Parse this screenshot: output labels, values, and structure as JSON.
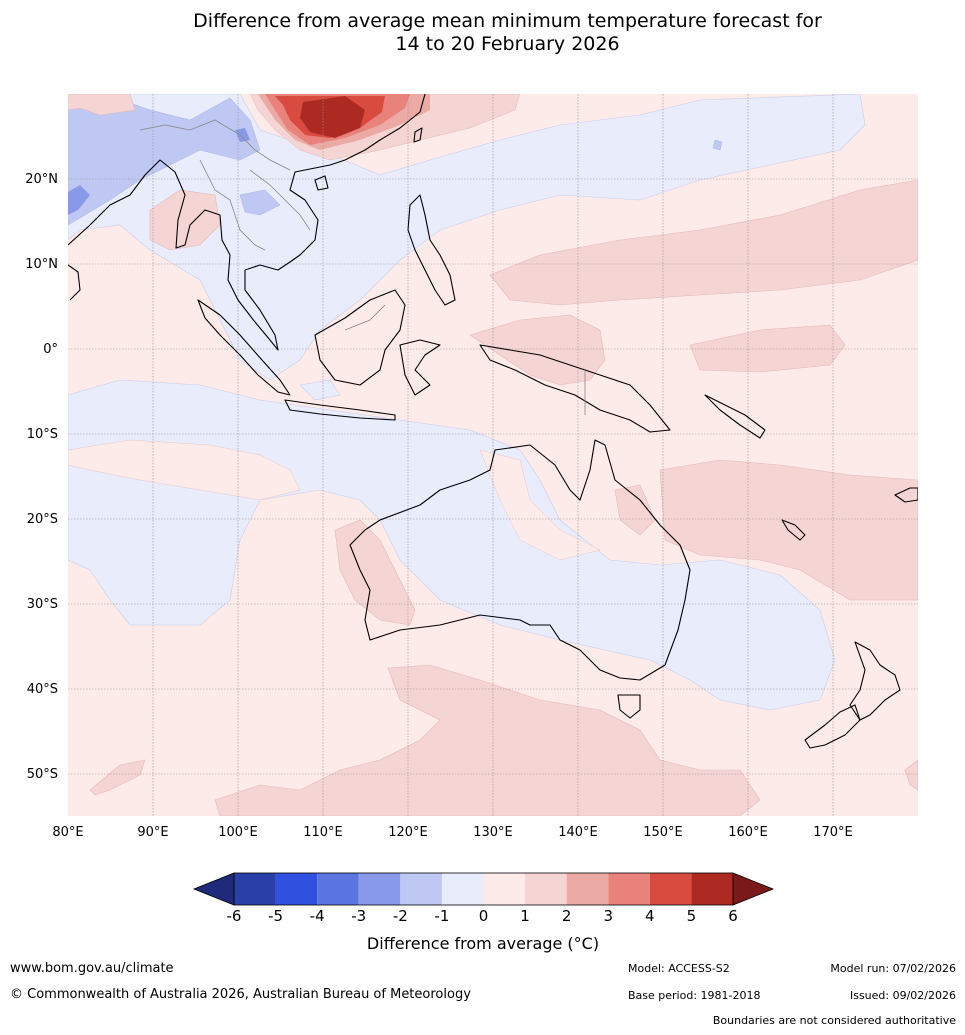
{
  "title": {
    "line1": "Difference from average mean minimum temperature forecast for",
    "line2": "14 to 20 February 2026"
  },
  "map": {
    "lon_labels": [
      "80°E",
      "90°E",
      "100°E",
      "110°E",
      "120°E",
      "130°E",
      "140°E",
      "150°E",
      "160°E",
      "170°E"
    ],
    "lat_labels": [
      "20°N",
      "10°N",
      "0°",
      "10°S",
      "20°S",
      "30°S",
      "40°S",
      "50°S"
    ],
    "lon_range": [
      80,
      180
    ],
    "lat_range": [
      -55,
      30
    ]
  },
  "colorbar": {
    "title": "Difference from average (°C)",
    "ticks": [
      "-6",
      "-5",
      "-4",
      "-3",
      "-2",
      "-1",
      "0",
      "1",
      "2",
      "3",
      "4",
      "5",
      "6"
    ],
    "colors": [
      "#2b3fa8",
      "#3050e0",
      "#5a74e0",
      "#8799e8",
      "#bfc8f3",
      "#e8ecfb",
      "#fdebea",
      "#f5d4d4",
      "#ecaaa5",
      "#e8827a",
      "#d94b3e",
      "#ad2a22"
    ],
    "under_color": "#1f2b7a",
    "over_color": "#7a1a18"
  },
  "footer": {
    "url": "www.bom.gov.au/climate",
    "copyright": "© Commonwealth of Australia 2026, Australian Bureau of Meteorology",
    "model": "Model: ACCESS-S2",
    "base_period": "Base period: 1981-2018",
    "model_run": "Model run: 07/02/2026",
    "issued": "Issued: 09/02/2026",
    "disclaimer": "Boundaries are not considered authoritative"
  }
}
